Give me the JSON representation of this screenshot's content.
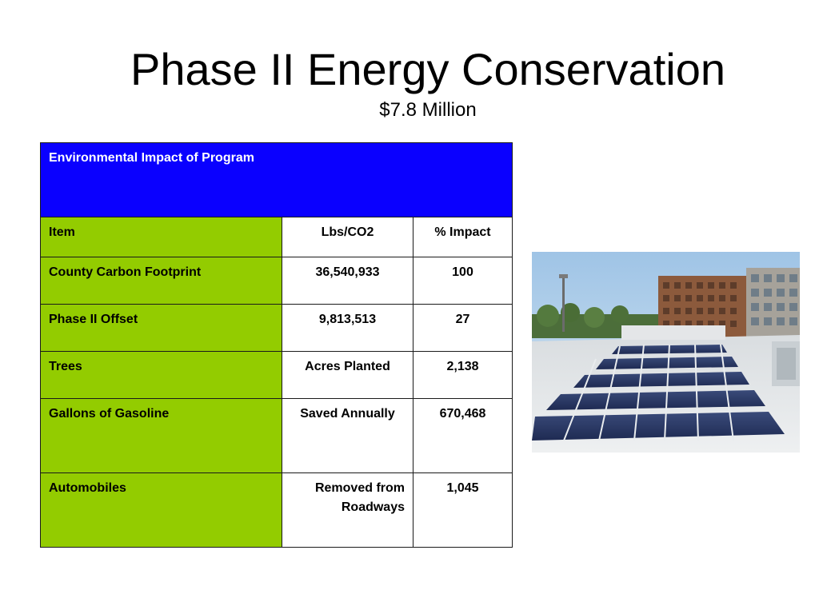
{
  "slide": {
    "title": "Phase II Energy Conservation",
    "subtitle": "$7.8 Million"
  },
  "table": {
    "heading": "Environmental Impact of Program",
    "columns": [
      "Item",
      "Lbs/CO2",
      "% Impact"
    ],
    "rows": [
      {
        "item": "County Carbon Footprint",
        "col2": "36,540,933",
        "col3": "100"
      },
      {
        "item": "Phase II Offset",
        "col2": "9,813,513",
        "col3": "27"
      },
      {
        "item": "Trees",
        "col2": "Acres Planted",
        "col3": "2,138"
      },
      {
        "item": "Gallons of Gasoline",
        "col2": "Saved Annually",
        "col3": "670,468"
      },
      {
        "item": "Automobiles",
        "col2": "Removed from Roadways",
        "col3": "1,045"
      }
    ]
  },
  "colors": {
    "heading_bg": "#0a00ff",
    "item_bg": "#93cc00"
  },
  "photo": {
    "subject": "solar-panels-on-building-rooftop"
  }
}
